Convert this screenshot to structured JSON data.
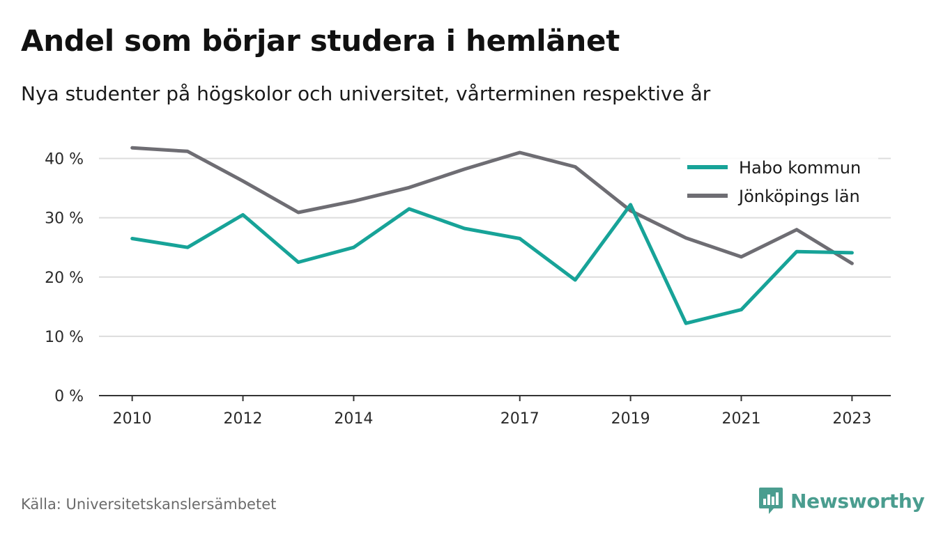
{
  "title": "Andel som börjar studera i hemlänet",
  "subtitle": "Nya studenter på högskolor och universitet, vårterminen respektive år",
  "source": "Källa: Universitetskanslersämbetet",
  "brand": {
    "name": "Newsworthy",
    "icon": "newsworthy-logo-icon",
    "color": "#4a9d8f"
  },
  "chart_data": {
    "type": "line",
    "x": [
      2010,
      2011,
      2012,
      2013,
      2014,
      2015,
      2016,
      2017,
      2018,
      2019,
      2020,
      2021,
      2022,
      2023
    ],
    "x_tick_labels": [
      "2010",
      "2012",
      "2014",
      "2017",
      "2019",
      "2021",
      "2023"
    ],
    "y_ticks": [
      0,
      10,
      20,
      30,
      40
    ],
    "y_tick_labels": [
      "0 %",
      "10 %",
      "20 %",
      "30 %",
      "40 %"
    ],
    "ylim": [
      0,
      45
    ],
    "xlim": [
      2009.4,
      2023.7
    ],
    "grid": true,
    "legend_position": "top-right",
    "series": [
      {
        "name": "Habo kommun",
        "color": "#17a398",
        "values": [
          26.5,
          25.0,
          30.5,
          22.5,
          25.0,
          31.5,
          28.2,
          26.5,
          19.5,
          32.2,
          12.2,
          14.5,
          24.3,
          24.1
        ]
      },
      {
        "name": "Jönköpings län",
        "color": "#6e6d73",
        "values": [
          41.8,
          41.2,
          36.2,
          30.9,
          32.8,
          35.1,
          38.2,
          41.0,
          38.6,
          31.2,
          26.6,
          23.4,
          28.0,
          22.3
        ]
      }
    ]
  }
}
